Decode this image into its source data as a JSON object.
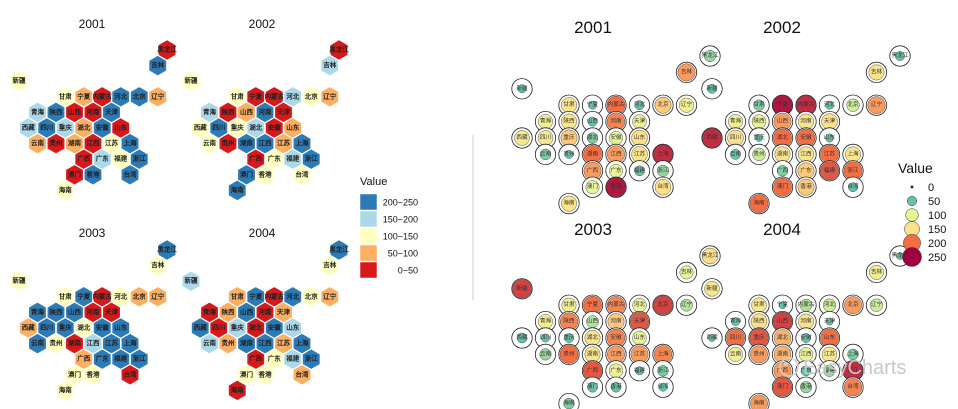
{
  "colors": {
    "hex_bins": [
      "#d7191c",
      "#fdae61",
      "#ffffbf",
      "#abd9e9",
      "#2c7bb6"
    ],
    "divider": "#cccccc",
    "circle_ring": "#222222"
  },
  "watermark": "EasyCharts",
  "chart_data": [
    {
      "type": "hexbin-map",
      "panels": [
        {
          "title": "2001",
          "values": [
            40,
            240,
            130,
            120,
            80,
            30,
            210,
            220,
            70,
            170,
            240,
            20,
            10,
            240,
            180,
            200,
            170,
            90,
            220,
            10,
            60,
            30,
            80,
            10,
            120,
            200,
            20,
            160,
            130,
            220,
            20,
            250,
            230,
            110
          ]
        },
        {
          "title": "2002",
          "values": [
            20,
            180,
            120,
            130,
            20,
            30,
            160,
            130,
            60,
            160,
            20,
            90,
            230,
            20,
            120,
            240,
            120,
            160,
            30,
            80,
            110,
            30,
            210,
            230,
            80,
            220,
            20,
            100,
            160,
            210,
            200,
            140,
            110,
            240
          ]
        },
        {
          "title": "2003",
          "values": [
            220,
            100,
            130,
            140,
            220,
            20,
            130,
            90,
            70,
            230,
            230,
            200,
            30,
            40,
            70,
            240,
            210,
            110,
            240,
            220,
            240,
            130,
            30,
            170,
            200,
            230,
            90,
            210,
            220,
            210,
            120,
            110,
            30,
            130
          ]
        },
        {
          "title": "2004",
          "values": [
            200,
            110,
            170,
            80,
            220,
            20,
            200,
            100,
            80,
            30,
            60,
            210,
            20,
            50,
            210,
            20,
            170,
            30,
            230,
            180,
            160,
            70,
            220,
            210,
            70,
            230,
            20,
            120,
            180,
            210,
            120,
            140,
            70,
            20
          ]
        }
      ],
      "legend": {
        "title": "Value",
        "position": "right",
        "items": [
          {
            "label": "200~250",
            "color": "#2c7bb6"
          },
          {
            "label": "150~200",
            "color": "#abd9e9"
          },
          {
            "label": "100~150",
            "color": "#ffffbf"
          },
          {
            "label": "50~100",
            "color": "#fdae61"
          },
          {
            "label": "0~50",
            "color": "#d7191c"
          }
        ]
      }
    },
    {
      "type": "bubble-grid-map",
      "panels": [
        {
          "title": "2001",
          "values": [
            70,
            180,
            30,
            140,
            30,
            200,
            40,
            160,
            120,
            120,
            140,
            40,
            190,
            110,
            130,
            130,
            160,
            60,
            100,
            150,
            60,
            30,
            200,
            180,
            150,
            230,
            180,
            100,
            50,
            70,
            100,
            240,
            150,
            140
          ]
        },
        {
          "title": "2002",
          "values": [
            40,
            140,
            40,
            60,
            240,
            230,
            30,
            90,
            180,
            120,
            110,
            180,
            140,
            150,
            230,
            150,
            20,
            200,
            200,
            30,
            50,
            90,
            140,
            140,
            200,
            140,
            60,
            160,
            210,
            200,
            200,
            160,
            40,
            200
          ]
        },
        {
          "title": "2003",
          "values": [
            150,
            100,
            220,
            120,
            200,
            190,
            110,
            220,
            80,
            120,
            190,
            80,
            160,
            210,
            50,
            30,
            40,
            140,
            190,
            110,
            70,
            200,
            140,
            180,
            180,
            190,
            210,
            110,
            30,
            60,
            50,
            50,
            30,
            60
          ]
        },
        {
          "title": "2004",
          "values": [
            20,
            120,
            130,
            130,
            20,
            80,
            90,
            180,
            90,
            30,
            150,
            220,
            140,
            20,
            20,
            200,
            210,
            170,
            40,
            200,
            120,
            180,
            170,
            110,
            130,
            60,
            180,
            50,
            70,
            230,
            210,
            70,
            190,
            180
          ]
        }
      ],
      "legend": {
        "title": "Value",
        "position": "right",
        "items": [
          {
            "label": "0",
            "value": 0,
            "color": "#111111"
          },
          {
            "label": "50",
            "value": 50,
            "color": "#66c2a5"
          },
          {
            "label": "100",
            "value": 100,
            "color": "#e6f598"
          },
          {
            "label": "150",
            "value": 150,
            "color": "#fee08b"
          },
          {
            "label": "200",
            "value": 200,
            "color": "#f46d43"
          },
          {
            "label": "250",
            "value": 250,
            "color": "#9e0142"
          }
        ]
      }
    }
  ],
  "provinces": [
    "黑龙江",
    "吉林",
    "新疆",
    "甘肃",
    "宁夏",
    "内蒙古",
    "河北",
    "北京",
    "辽宁",
    "青海",
    "陕西",
    "山西",
    "河南",
    "天津",
    "西藏",
    "四川",
    "重庆",
    "湖北",
    "安徽",
    "山东",
    "云南",
    "贵州",
    "湖南",
    "江西",
    "江苏",
    "上海",
    "广西",
    "广东",
    "福建",
    "浙江",
    "澳门",
    "香港",
    "台湾",
    "海南"
  ]
}
